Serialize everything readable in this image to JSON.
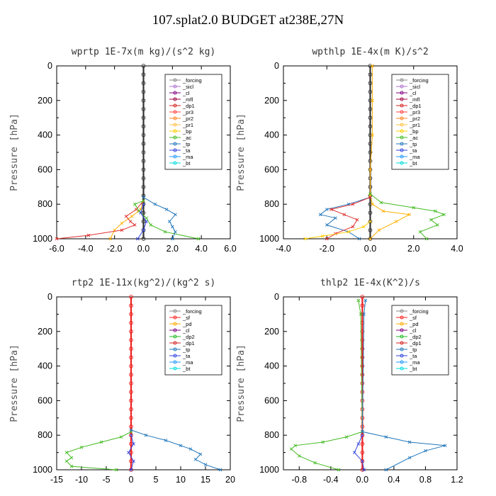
{
  "title": "107.splat2.0  BUDGET at238E,27N",
  "colors": {
    "forcing": "#888888",
    "sicl": "#b070d0",
    "cl": "#800080",
    "mfl": "#a00040",
    "dp1": "#d42020",
    "pr3": "#ff4040",
    "pr2": "#ff8020",
    "pr1": "#ffc040",
    "bp": "#ffcc00",
    "ac": "#44bb22",
    "tp": "#2277bb",
    "ta": "#3344dd",
    "ma": "#2299ff",
    "bt": "#00dddd",
    "sf": "#ff2020",
    "pd": "#ffaa00",
    "dp2": "#22bb22",
    "dp1g": "#55cc33"
  },
  "chart_data": [
    {
      "type": "line",
      "title": "wprtp  1E-7x(m kg)/(s^2 kg)",
      "ylabel": "Pressure [hPa]",
      "xlim": [
        -6,
        6
      ],
      "ylim": [
        1000,
        0
      ],
      "xticks": [
        "-6.0",
        "-4.0",
        "-2.0",
        "0.0",
        "2.0",
        "4.0",
        "6.0"
      ],
      "yticks": [
        "0",
        "200",
        "400",
        "600",
        "800",
        "1000"
      ],
      "legend_items": [
        "_forcing",
        "_sicl",
        "_cl",
        "_mfl",
        "_dp1",
        "_pr3",
        "_pr2",
        "_pr1",
        "_bp",
        "_ac",
        "_tp",
        "_ta",
        "_ma",
        "_bt"
      ],
      "series": [
        {
          "name": "_forcing",
          "color": "#333333",
          "x": [
            0,
            0,
            0,
            0,
            0,
            0,
            0,
            0,
            0,
            0,
            0,
            0,
            0,
            0,
            0,
            0,
            0,
            0,
            0,
            0,
            0
          ],
          "y": [
            0,
            50,
            100,
            150,
            200,
            250,
            300,
            350,
            400,
            450,
            500,
            550,
            600,
            650,
            700,
            750,
            800,
            850,
            900,
            950,
            1000
          ]
        },
        {
          "name": "_pr1",
          "color": "#ffb000",
          "x": [
            0,
            -0.2,
            -0.8,
            -1.5,
            -2.0,
            -2.3
          ],
          "y": [
            780,
            830,
            870,
            910,
            950,
            1000
          ]
        },
        {
          "name": "_dp1",
          "color": "#e03030",
          "x": [
            0,
            -0.5,
            -1.2,
            -0.9,
            -0.6,
            -1.5,
            -3.8,
            -6.0
          ],
          "y": [
            780,
            830,
            870,
            900,
            920,
            950,
            980,
            1000
          ]
        },
        {
          "name": "_ac",
          "color": "#44bb22",
          "x": [
            0,
            -0.6,
            -0.3,
            0.2,
            0.5,
            1.5,
            3.8
          ],
          "y": [
            780,
            800,
            840,
            880,
            920,
            960,
            1000
          ]
        },
        {
          "name": "_tp",
          "color": "#2277bb",
          "x": [
            0,
            0.8,
            1.6,
            2.2,
            1.8,
            2.0,
            2.2,
            2.0
          ],
          "y": [
            760,
            800,
            830,
            860,
            900,
            930,
            960,
            1000
          ]
        },
        {
          "name": "_ta",
          "color": "#3344dd",
          "x": [
            0,
            -0.2,
            0.2,
            0.0,
            -0.4
          ],
          "y": [
            800,
            850,
            900,
            950,
            1000
          ]
        }
      ]
    },
    {
      "type": "line",
      "title": "wpthlp  1E-4x(m K)/s^2",
      "ylabel": "Pressure [hPa]",
      "xlim": [
        -4,
        4
      ],
      "ylim": [
        1000,
        0
      ],
      "xticks": [
        "-4.0",
        "-2.0",
        "0.0",
        "2.0",
        "4.0"
      ],
      "yticks": [
        "0",
        "200",
        "400",
        "600",
        "800",
        "1000"
      ],
      "legend_items": [
        "_forcing",
        "_sicl",
        "_cl",
        "_mfl",
        "_dp1",
        "_pr3",
        "_pr2",
        "_pr1",
        "_bp",
        "_ac",
        "_tp",
        "_ta",
        "_ma",
        "_bt"
      ],
      "series": [
        {
          "name": "_forcing",
          "color": "#333333",
          "x": [
            0,
            0,
            0,
            0,
            0,
            0,
            0,
            0,
            0,
            0,
            0,
            0,
            0,
            0,
            0,
            0,
            0,
            0,
            0,
            0,
            0
          ],
          "y": [
            0,
            50,
            100,
            150,
            200,
            250,
            300,
            350,
            400,
            450,
            500,
            550,
            600,
            650,
            700,
            750,
            800,
            850,
            900,
            950,
            1000
          ]
        },
        {
          "name": "_cl",
          "color": "#ffb000",
          "x": [
            0.1,
            0.1,
            0.1,
            0.0,
            0.0,
            0.1,
            0.6,
            1.8,
            1.2,
            0.4,
            0.0
          ],
          "y": [
            0,
            200,
            400,
            600,
            750,
            800,
            840,
            860,
            900,
            950,
            1000
          ]
        },
        {
          "name": "_ac",
          "color": "#44bb22",
          "x": [
            0,
            0.5,
            2.0,
            3.0,
            3.4,
            2.8,
            3.1,
            2.3,
            2.6
          ],
          "y": [
            740,
            790,
            820,
            840,
            860,
            890,
            920,
            960,
            1000
          ]
        },
        {
          "name": "_tp",
          "color": "#2277bb",
          "x": [
            0,
            -1.0,
            -2.0,
            -2.3,
            -1.6,
            -2.0,
            -1.0,
            -0.5
          ],
          "y": [
            760,
            800,
            830,
            860,
            880,
            920,
            960,
            1000
          ]
        },
        {
          "name": "_dp1",
          "color": "#e03030",
          "x": [
            0,
            -0.8,
            -1.8,
            -1.2,
            -0.6,
            -0.8,
            -1.6,
            -2.0
          ],
          "y": [
            760,
            800,
            830,
            860,
            890,
            930,
            970,
            1000
          ]
        },
        {
          "name": "_pr1",
          "color": "#ffcc00",
          "x": [
            0,
            -0.3,
            -1.0,
            -2.2,
            -3.0
          ],
          "y": [
            900,
            930,
            960,
            985,
            1000
          ]
        }
      ]
    },
    {
      "type": "line",
      "title": "rtp2  1E-11x(kg^2)/(kg^2 s)",
      "ylabel": "Pressure [hPa]",
      "xlim": [
        -15,
        20
      ],
      "ylim": [
        1000,
        0
      ],
      "xticks": [
        "-15",
        "-10",
        "-5",
        "0",
        "5",
        "10",
        "15",
        "20"
      ],
      "yticks": [
        "0",
        "200",
        "400",
        "600",
        "800",
        "1000"
      ],
      "legend_items": [
        "_forcing",
        "_sf",
        "_pd",
        "_cl",
        "_dp2",
        "_dp1",
        "_tp",
        "_ta",
        "_ma",
        "_bt"
      ],
      "series": [
        {
          "name": "_forcing",
          "color": "#ee2222",
          "x": [
            0,
            0,
            0,
            0,
            0,
            0,
            0,
            0,
            0,
            0,
            0,
            0,
            0,
            0,
            0,
            0,
            0,
            0,
            0,
            0,
            0
          ],
          "y": [
            0,
            50,
            100,
            150,
            200,
            250,
            300,
            350,
            400,
            450,
            500,
            550,
            600,
            650,
            700,
            750,
            800,
            850,
            900,
            950,
            1000
          ]
        },
        {
          "name": "_dp1",
          "color": "#44bb22",
          "x": [
            0,
            -2,
            -6,
            -10,
            -13,
            -12,
            -13,
            -12,
            -3
          ],
          "y": [
            780,
            810,
            840,
            870,
            900,
            930,
            950,
            980,
            1000
          ]
        },
        {
          "name": "_tp",
          "color": "#2277bb",
          "x": [
            0,
            3,
            7,
            10,
            12,
            14,
            13,
            15,
            18
          ],
          "y": [
            770,
            800,
            830,
            860,
            880,
            910,
            940,
            970,
            1000
          ]
        },
        {
          "name": "_ta",
          "color": "#3344dd",
          "x": [
            0,
            0.5,
            -0.5,
            0.5,
            0
          ],
          "y": [
            800,
            850,
            900,
            950,
            1000
          ]
        }
      ]
    },
    {
      "type": "line",
      "title": "thlp2  1E-4x(K^2)/s",
      "ylabel": "Pressure [hPa]",
      "xlim": [
        -1.0,
        1.2
      ],
      "ylim": [
        1000,
        0
      ],
      "xticks": [
        "-0.8",
        "-0.4",
        "0.0",
        "0.4",
        "0.8",
        "1.2"
      ],
      "yticks": [
        "0",
        "200",
        "400",
        "600",
        "800",
        "1000"
      ],
      "legend_items": [
        "_forcing",
        "_sf",
        "_pd",
        "_cl",
        "_dp2",
        "_dp1",
        "_tp",
        "_ta",
        "_ma",
        "_bt"
      ],
      "series": [
        {
          "name": "_forcing",
          "color": "#ee2222",
          "x": [
            0,
            0,
            0,
            0,
            0,
            0,
            0,
            0,
            0,
            0,
            0,
            0,
            0,
            0,
            0,
            0,
            0,
            0,
            0,
            0,
            0
          ],
          "y": [
            0,
            50,
            100,
            150,
            200,
            250,
            300,
            350,
            400,
            450,
            500,
            550,
            600,
            650,
            700,
            750,
            800,
            850,
            900,
            950,
            1000
          ]
        },
        {
          "name": "_dp1",
          "color": "#44bb22",
          "x": [
            -0.05,
            -0.02,
            0,
            -0.2,
            -0.5,
            -0.85,
            -0.9,
            -0.8,
            -0.6,
            -0.3
          ],
          "y": [
            20,
            100,
            780,
            810,
            840,
            860,
            880,
            920,
            960,
            1000
          ]
        },
        {
          "name": "_tp",
          "color": "#2277bb",
          "x": [
            0.04,
            0.02,
            0,
            0.3,
            0.6,
            1.05,
            0.8,
            0.6,
            0.3
          ],
          "y": [
            20,
            100,
            780,
            810,
            840,
            860,
            890,
            930,
            1000
          ]
        },
        {
          "name": "_ta",
          "color": "#3344dd",
          "x": [
            0,
            -0.05,
            -0.1,
            0.0,
            0.02
          ],
          "y": [
            800,
            850,
            900,
            950,
            1000
          ]
        }
      ]
    }
  ]
}
